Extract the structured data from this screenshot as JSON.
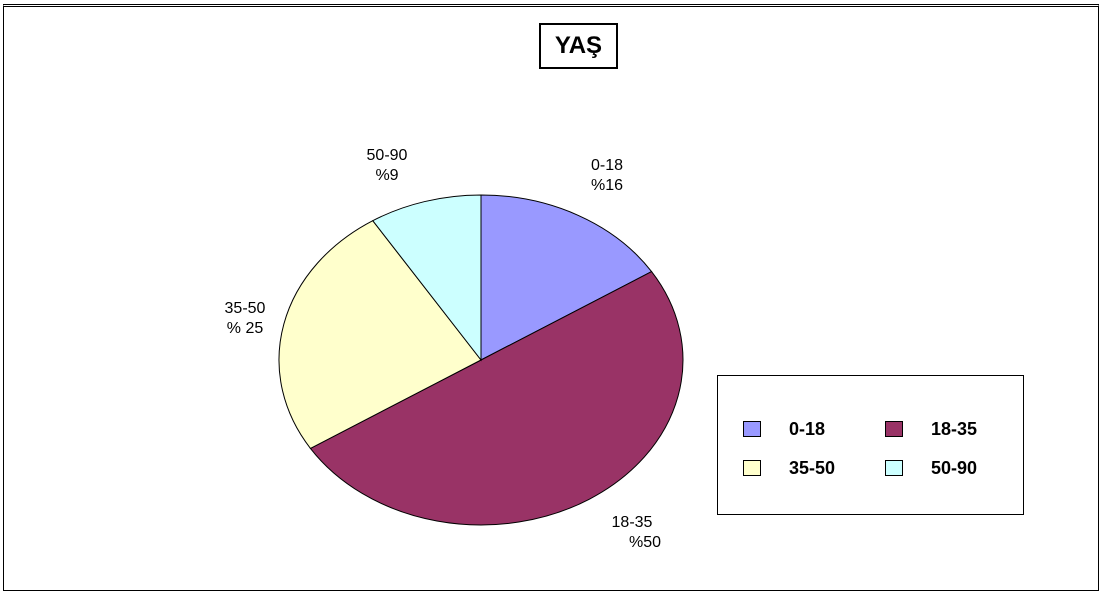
{
  "chart_data": {
    "type": "pie",
    "title": "YAŞ",
    "categories": [
      "0-18",
      "18-35",
      "35-50",
      "50-90"
    ],
    "values": [
      16,
      50,
      25,
      9
    ],
    "slice_labels": [
      {
        "category": "0-18",
        "text": "%16"
      },
      {
        "category": "18-35",
        "text": "%50"
      },
      {
        "category": "35-50",
        "text": "% 25"
      },
      {
        "category": "50-90",
        "text": "%9"
      }
    ],
    "colors": [
      "#9999ff",
      "#993366",
      "#ffffcc",
      "#ccffff"
    ],
    "legend": {
      "placement": "bottom-right",
      "entries": [
        "0-18",
        "18-35",
        "35-50",
        "50-90"
      ]
    }
  }
}
